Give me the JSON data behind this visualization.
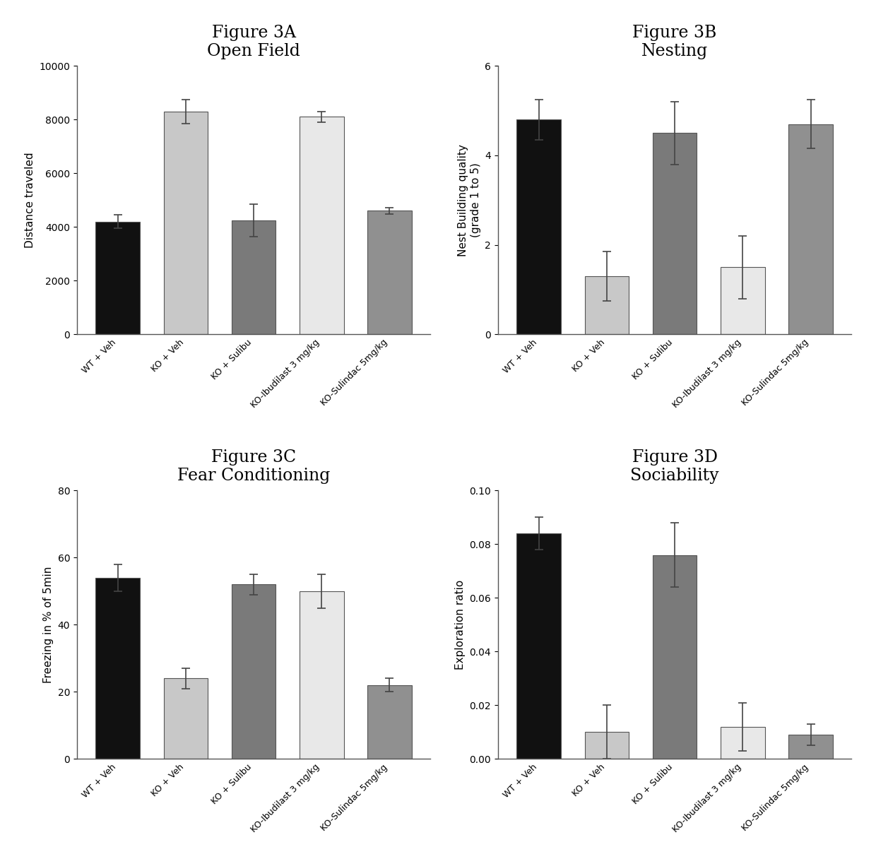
{
  "figures": [
    {
      "title_line1": "Figure 3A",
      "title_line2": "Open Field",
      "ylabel": "Distance traveled",
      "ylim": [
        0,
        10000
      ],
      "yticks": [
        0,
        2000,
        4000,
        6000,
        8000,
        10000
      ],
      "categories": [
        "WT + Veh",
        "KO + Veh",
        "KO + Sulibu",
        "KO-Ibudilast 3 mg/kg",
        "KO-Sulindac 5mg/kg"
      ],
      "values": [
        4200,
        8300,
        4250,
        8100,
        4600
      ],
      "errors": [
        250,
        450,
        600,
        200,
        120
      ],
      "colors": [
        "#111111",
        "#c8c8c8",
        "#7a7a7a",
        "#e8e8e8",
        "#909090"
      ]
    },
    {
      "title_line1": "Figure 3B",
      "title_line2": "Nesting",
      "ylabel": "Nest Building quality\n(grade 1 to 5)",
      "ylim": [
        0,
        6
      ],
      "yticks": [
        0,
        2,
        4,
        6
      ],
      "categories": [
        "WT + Veh",
        "KO + Veh",
        "KO + Sulibu",
        "KO-Ibudilast 3 mg/kg",
        "KO-Sulindac 5mg/kg"
      ],
      "values": [
        4.8,
        1.3,
        4.5,
        1.5,
        4.7
      ],
      "errors": [
        0.45,
        0.55,
        0.7,
        0.7,
        0.55
      ],
      "colors": [
        "#111111",
        "#c8c8c8",
        "#7a7a7a",
        "#e8e8e8",
        "#909090"
      ]
    },
    {
      "title_line1": "Figure 3C",
      "title_line2": "Fear Conditioning",
      "ylabel": "Freezing in % of 5min",
      "ylim": [
        0,
        80
      ],
      "yticks": [
        0,
        20,
        40,
        60,
        80
      ],
      "categories": [
        "WT + Veh",
        "KO + Veh",
        "KO + Sulibu",
        "KO-Ibudilast 3 mg/kg",
        "KO-Sulindac 5mg/kg"
      ],
      "values": [
        54,
        24,
        52,
        50,
        22
      ],
      "errors": [
        4,
        3,
        3,
        5,
        2
      ],
      "colors": [
        "#111111",
        "#c8c8c8",
        "#7a7a7a",
        "#e8e8e8",
        "#909090"
      ]
    },
    {
      "title_line1": "Figure 3D",
      "title_line2": "Sociability",
      "ylabel": "Exploration ratio",
      "ylim": [
        0,
        0.1
      ],
      "yticks": [
        0.0,
        0.02,
        0.04,
        0.06,
        0.08,
        0.1
      ],
      "ytick_labels": [
        "0.00",
        "0.02",
        "0.04",
        "0.06",
        "0.08",
        "0.10"
      ],
      "categories": [
        "WT + Veh",
        "KO + Veh",
        "KO + Sulibu",
        "KO-Ibudilast 3 mg/kg",
        "KO-Sulindac 5mg/kg"
      ],
      "values": [
        0.084,
        0.01,
        0.076,
        0.012,
        0.009
      ],
      "errors": [
        0.006,
        0.01,
        0.012,
        0.009,
        0.004
      ],
      "colors": [
        "#111111",
        "#c8c8c8",
        "#7a7a7a",
        "#e8e8e8",
        "#909090"
      ]
    }
  ],
  "background_color": "#ffffff",
  "title_fontsize": 17,
  "subtitle_fontsize": 17,
  "ylabel_fontsize": 11,
  "tick_fontsize": 10,
  "xtick_fontsize": 9,
  "bar_width": 0.65,
  "capsize": 4
}
